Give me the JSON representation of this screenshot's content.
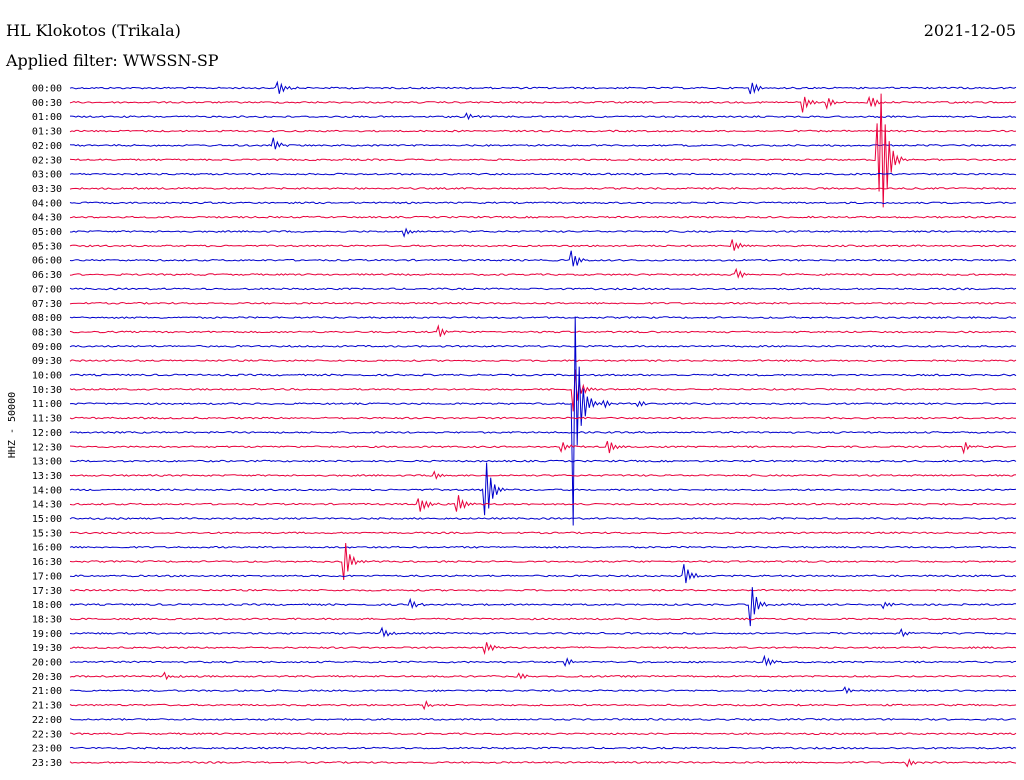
{
  "header": {
    "station": "HL Klokotos (Trikala)",
    "date": "2021-12-05",
    "filter": "Applied filter: WWSSN-SP"
  },
  "chart_data": {
    "type": "line",
    "title": "HL Klokotos (Trikala)",
    "ylabel": "HHZ - 50000",
    "row_labels": [
      "00:00",
      "00:30",
      "01:00",
      "01:30",
      "02:00",
      "02:30",
      "03:00",
      "03:30",
      "04:00",
      "04:30",
      "05:00",
      "05:30",
      "06:00",
      "06:30",
      "07:00",
      "07:30",
      "08:00",
      "08:30",
      "09:00",
      "09:30",
      "10:00",
      "10:30",
      "11:00",
      "11:30",
      "12:00",
      "12:30",
      "13:00",
      "13:30",
      "14:00",
      "14:30",
      "15:00",
      "15:30",
      "16:00",
      "16:30",
      "17:00",
      "17:30",
      "18:00",
      "18:30",
      "19:00",
      "19:30",
      "20:00",
      "20:30",
      "21:00",
      "21:30",
      "22:00",
      "22:30",
      "23:00",
      "23:30"
    ],
    "colors": [
      "#0000cc",
      "#e8003c"
    ],
    "events": [
      {
        "row": 0,
        "t": 0.22,
        "amp": 0.7
      },
      {
        "row": 0,
        "t": 0.72,
        "amp": 0.5
      },
      {
        "row": 1,
        "t": 0.775,
        "amp": 0.7
      },
      {
        "row": 1,
        "t": 0.8,
        "amp": 0.4
      },
      {
        "row": 1,
        "t": 0.845,
        "amp": 0.6
      },
      {
        "row": 2,
        "t": 0.42,
        "amp": 0.3
      },
      {
        "row": 4,
        "t": 0.215,
        "amp": 0.5
      },
      {
        "row": 5,
        "t": 0.855,
        "amp": 2.8
      },
      {
        "row": 5,
        "t": 0.858,
        "amp": 4.5
      },
      {
        "row": 10,
        "t": 0.355,
        "amp": 0.3
      },
      {
        "row": 11,
        "t": 0.7,
        "amp": 0.6
      },
      {
        "row": 12,
        "t": 0.53,
        "amp": 1.0
      },
      {
        "row": 13,
        "t": 0.705,
        "amp": 0.4
      },
      {
        "row": 17,
        "t": 0.39,
        "amp": 0.4
      },
      {
        "row": 21,
        "t": 0.532,
        "amp": 2.0
      },
      {
        "row": 22,
        "t": 0.532,
        "amp": 10.0
      },
      {
        "row": 22,
        "t": 0.565,
        "amp": 0.3
      },
      {
        "row": 22,
        "t": 0.6,
        "amp": 0.3
      },
      {
        "row": 25,
        "t": 0.52,
        "amp": 0.4
      },
      {
        "row": 25,
        "t": 0.57,
        "amp": 0.6
      },
      {
        "row": 25,
        "t": 0.945,
        "amp": 0.5
      },
      {
        "row": 27,
        "t": 0.385,
        "amp": 0.3
      },
      {
        "row": 28,
        "t": 0.44,
        "amp": 2.5
      },
      {
        "row": 29,
        "t": 0.37,
        "amp": 0.7
      },
      {
        "row": 29,
        "t": 0.41,
        "amp": 0.9
      },
      {
        "row": 33,
        "t": 0.29,
        "amp": 1.8
      },
      {
        "row": 34,
        "t": 0.65,
        "amp": 0.9
      },
      {
        "row": 36,
        "t": 0.72,
        "amp": 1.6
      },
      {
        "row": 36,
        "t": 0.36,
        "amp": 0.4
      },
      {
        "row": 36,
        "t": 0.86,
        "amp": 0.3
      },
      {
        "row": 38,
        "t": 0.33,
        "amp": 0.4
      },
      {
        "row": 38,
        "t": 0.88,
        "amp": 0.3
      },
      {
        "row": 39,
        "t": 0.44,
        "amp": 0.5
      },
      {
        "row": 40,
        "t": 0.525,
        "amp": 0.4
      },
      {
        "row": 40,
        "t": 0.735,
        "amp": 0.4
      },
      {
        "row": 41,
        "t": 0.1,
        "amp": 0.3
      },
      {
        "row": 41,
        "t": 0.475,
        "amp": 0.3
      },
      {
        "row": 42,
        "t": 0.82,
        "amp": 0.3
      },
      {
        "row": 43,
        "t": 0.375,
        "amp": 0.3
      },
      {
        "row": 47,
        "t": 0.885,
        "amp": 0.3
      }
    ]
  }
}
